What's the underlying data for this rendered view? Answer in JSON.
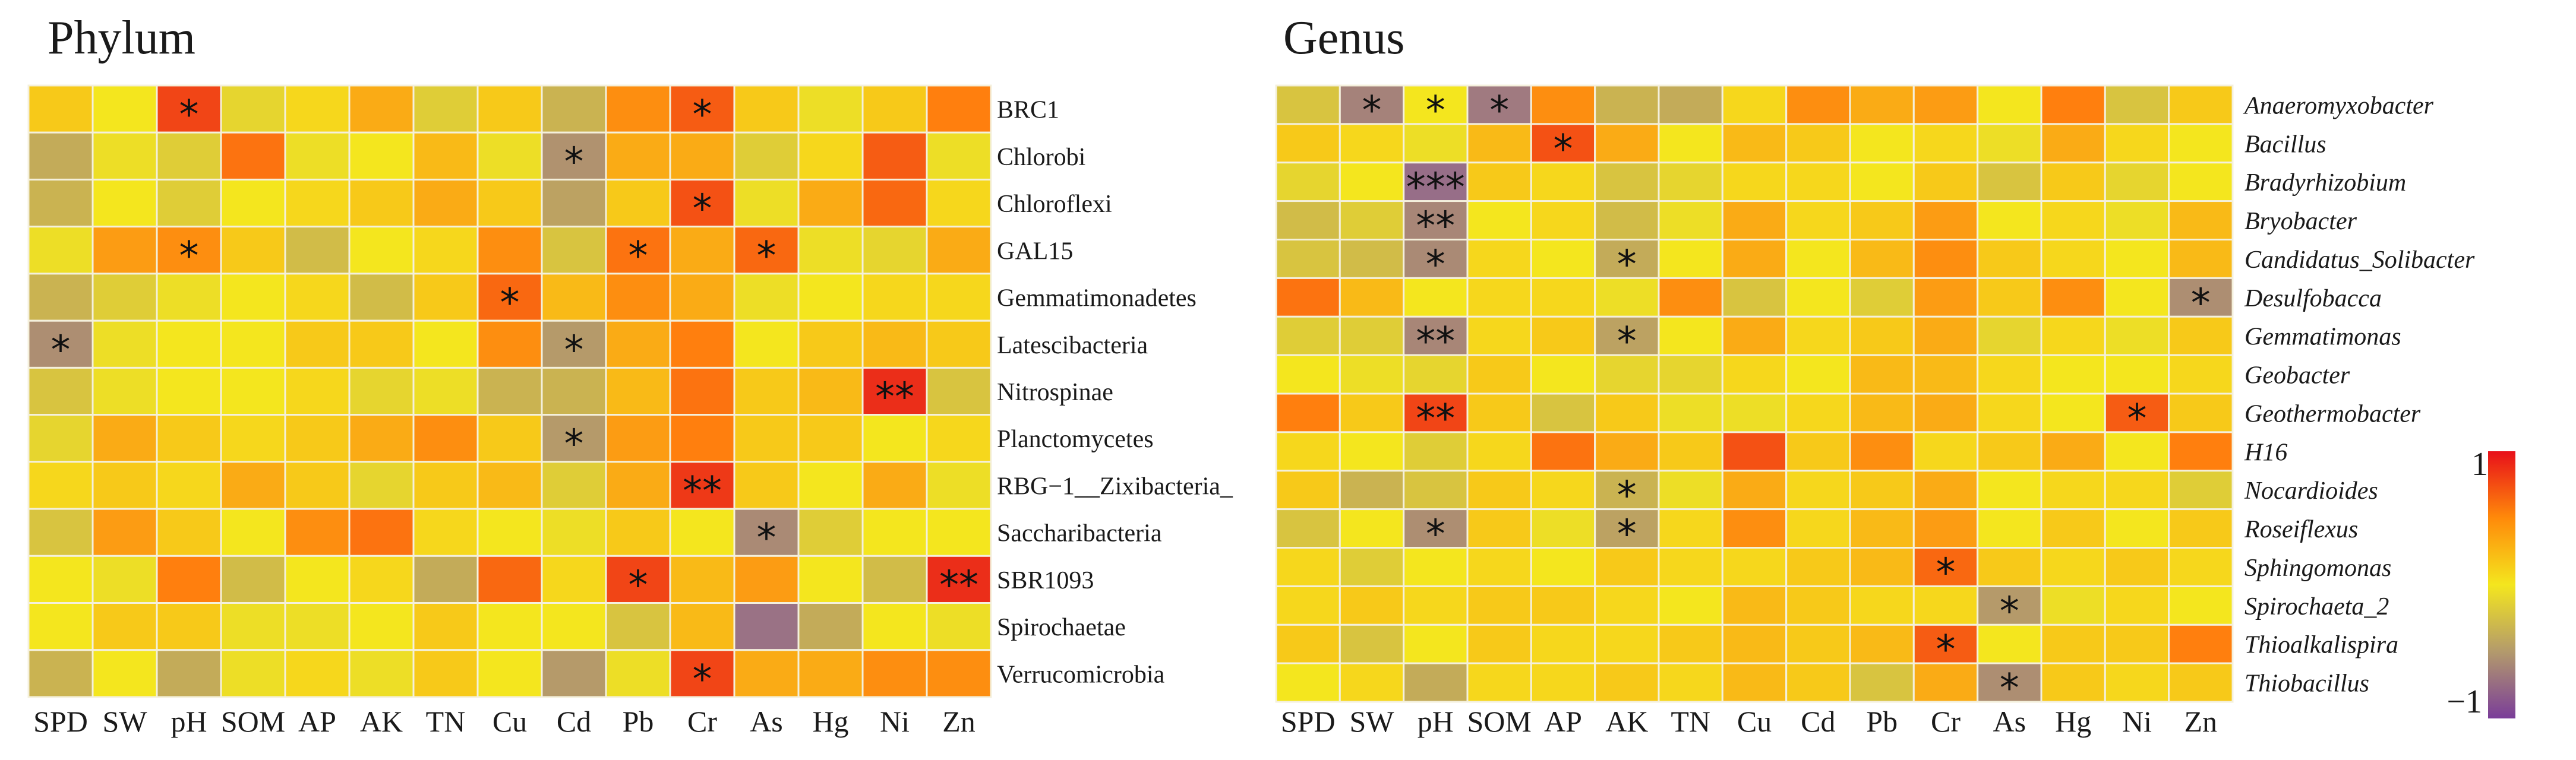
{
  "palette": {
    "neg": "#8a5a95",
    "low": "#b59a6a",
    "mid": "#f4e61e",
    "high": "#ff7f0e",
    "max": "#e8221a",
    "grid": "#f4f0dc"
  },
  "chart_data": [
    {
      "type": "heatmap",
      "title": "Phylum",
      "italic_rows": false,
      "columns": [
        "SPD",
        "SW",
        "pH",
        "SOM",
        "AP",
        "AK",
        "TN",
        "Cu",
        "Cd",
        "Pb",
        "Cr",
        "As",
        "Hg",
        "Ni",
        "Zn"
      ],
      "rows": [
        "BRC1",
        "Chlorobi",
        "Chloroflexi",
        "GAL15",
        "Gemmatimonadetes",
        "Latescibacteria",
        "Nitrospinae",
        "Planctomycetes",
        "RBG−1__Zixibacteria_",
        "Saccharibacteria",
        "SBR1093",
        "Spirochaetae",
        "Verrucomicrobia"
      ],
      "values": [
        [
          0.35,
          0.25,
          0.85,
          0.15,
          0.3,
          0.45,
          0.1,
          0.35,
          -0.05,
          0.55,
          0.75,
          0.35,
          0.2,
          0.35,
          0.6
        ],
        [
          -0.1,
          0.2,
          0.1,
          0.65,
          0.2,
          0.25,
          0.4,
          0.2,
          -0.3,
          0.45,
          0.45,
          0.1,
          0.3,
          0.75,
          0.2
        ],
        [
          -0.05,
          0.25,
          0.1,
          0.25,
          0.3,
          0.35,
          0.45,
          0.35,
          -0.15,
          0.35,
          0.8,
          0.2,
          0.45,
          0.7,
          0.3
        ],
        [
          0.2,
          0.5,
          0.55,
          0.35,
          0.0,
          0.25,
          0.3,
          0.55,
          0.05,
          0.65,
          0.45,
          0.7,
          0.2,
          0.15,
          0.45
        ],
        [
          -0.05,
          0.1,
          0.2,
          0.25,
          0.3,
          0.0,
          0.35,
          0.7,
          0.4,
          0.55,
          0.45,
          0.2,
          0.25,
          0.3,
          0.3
        ],
        [
          -0.35,
          0.2,
          0.25,
          0.25,
          0.35,
          0.35,
          0.25,
          0.55,
          -0.2,
          0.45,
          0.6,
          0.25,
          0.35,
          0.4,
          0.35
        ],
        [
          0.05,
          0.2,
          0.25,
          0.25,
          0.3,
          0.15,
          0.2,
          -0.05,
          -0.05,
          0.4,
          0.65,
          0.35,
          0.4,
          0.95,
          0.05
        ],
        [
          0.15,
          0.45,
          0.35,
          0.3,
          0.35,
          0.45,
          0.55,
          0.35,
          -0.2,
          0.5,
          0.6,
          0.35,
          0.35,
          0.25,
          0.3
        ],
        [
          0.3,
          0.35,
          0.3,
          0.45,
          0.35,
          0.15,
          0.35,
          0.4,
          0.1,
          0.45,
          0.9,
          0.35,
          0.25,
          0.45,
          0.2
        ],
        [
          0.05,
          0.5,
          0.35,
          0.25,
          0.55,
          0.65,
          0.3,
          0.25,
          0.2,
          0.35,
          0.25,
          -0.4,
          0.1,
          0.25,
          0.25
        ],
        [
          0.25,
          0.2,
          0.6,
          0.0,
          0.25,
          0.3,
          -0.1,
          0.7,
          0.3,
          0.85,
          0.4,
          0.5,
          0.25,
          0.0,
          0.95
        ],
        [
          0.25,
          0.35,
          0.35,
          0.2,
          0.2,
          0.25,
          0.35,
          0.25,
          0.25,
          0.05,
          0.4,
          -0.7,
          -0.1,
          0.25,
          0.2
        ],
        [
          -0.05,
          0.25,
          -0.1,
          0.2,
          0.3,
          0.2,
          0.35,
          0.25,
          -0.2,
          0.2,
          0.85,
          0.45,
          0.45,
          0.55,
          0.55
        ]
      ],
      "stars": [
        [
          "",
          "",
          "*",
          "",
          "",
          "",
          "",
          "",
          "",
          "",
          "*",
          "",
          "",
          "",
          ""
        ],
        [
          "",
          "",
          "",
          "",
          "",
          "",
          "",
          "",
          "*",
          "",
          "",
          "",
          "",
          "",
          ""
        ],
        [
          "",
          "",
          "",
          "",
          "",
          "",
          "",
          "",
          "",
          "",
          "*",
          "",
          "",
          "",
          ""
        ],
        [
          "",
          "",
          "*",
          "",
          "",
          "",
          "",
          "",
          "",
          "*",
          "",
          "*",
          "",
          "",
          ""
        ],
        [
          "",
          "",
          "",
          "",
          "",
          "",
          "",
          "*",
          "",
          "",
          "",
          "",
          "",
          "",
          ""
        ],
        [
          "*",
          "",
          "",
          "",
          "",
          "",
          "",
          "",
          "*",
          "",
          "",
          "",
          "",
          "",
          ""
        ],
        [
          "",
          "",
          "",
          "",
          "",
          "",
          "",
          "",
          "",
          "",
          "",
          "",
          "",
          "**",
          ""
        ],
        [
          "",
          "",
          "",
          "",
          "",
          "",
          "",
          "",
          "*",
          "",
          "",
          "",
          "",
          "",
          ""
        ],
        [
          "",
          "",
          "",
          "",
          "",
          "",
          "",
          "",
          "",
          "",
          "**",
          "",
          "",
          "",
          ""
        ],
        [
          "",
          "",
          "",
          "",
          "",
          "",
          "",
          "",
          "",
          "",
          "",
          "*",
          "",
          "",
          ""
        ],
        [
          "",
          "",
          "",
          "",
          "",
          "",
          "",
          "",
          "",
          "*",
          "",
          "",
          "",
          "",
          "**"
        ],
        [
          "",
          "",
          "",
          "",
          "",
          "",
          "",
          "",
          "",
          "",
          "",
          "",
          "",
          "",
          ""
        ],
        [
          "",
          "",
          "",
          "",
          "",
          "",
          "",
          "",
          "",
          "",
          "*",
          "",
          "",
          "",
          ""
        ]
      ]
    },
    {
      "type": "heatmap",
      "title": "Genus",
      "italic_rows": true,
      "columns": [
        "SPD",
        "SW",
        "pH",
        "SOM",
        "AP",
        "AK",
        "TN",
        "Cu",
        "Cd",
        "Pb",
        "Cr",
        "As",
        "Hg",
        "Ni",
        "Zn"
      ],
      "rows": [
        "Anaeromyxobacter",
        "Bacillus",
        "Bradyrhizobium",
        "Bryobacter",
        "Candidatus_Solibacter",
        "Desulfobacca",
        "Gemmatimonas",
        "Geobacter",
        "Geothermobacter",
        "H16",
        "Nocardioides",
        "Roseiflexus",
        "Sphingomonas",
        "Spirochaeta_2",
        "Thioalkalispira",
        "Thiobacillus"
      ],
      "values": [
        [
          0.05,
          -0.5,
          0.25,
          -0.6,
          0.55,
          -0.05,
          -0.1,
          0.3,
          0.55,
          0.45,
          0.5,
          0.25,
          0.6,
          0.05,
          0.35
        ],
        [
          0.35,
          0.3,
          0.2,
          0.4,
          0.8,
          0.45,
          0.25,
          0.4,
          0.35,
          0.25,
          0.3,
          0.2,
          0.45,
          0.3,
          0.25
        ],
        [
          0.15,
          0.25,
          -0.75,
          0.35,
          0.3,
          0.05,
          0.15,
          0.3,
          0.3,
          0.25,
          0.35,
          0.05,
          0.35,
          0.15,
          0.25
        ],
        [
          0.0,
          0.1,
          -0.45,
          0.25,
          0.3,
          0.0,
          0.2,
          0.45,
          0.3,
          0.35,
          0.5,
          0.25,
          0.3,
          0.2,
          0.4
        ],
        [
          0.05,
          0.0,
          -0.4,
          0.3,
          0.25,
          -0.1,
          0.25,
          0.45,
          0.25,
          0.4,
          0.55,
          0.35,
          0.3,
          0.25,
          0.4
        ],
        [
          0.65,
          0.4,
          0.25,
          0.3,
          0.3,
          0.2,
          0.55,
          0.05,
          0.25,
          0.1,
          0.5,
          0.35,
          0.55,
          0.25,
          -0.35
        ],
        [
          0.1,
          0.1,
          -0.45,
          0.3,
          0.35,
          -0.15,
          0.25,
          0.45,
          0.3,
          0.35,
          0.45,
          0.15,
          0.3,
          0.2,
          0.35
        ],
        [
          0.25,
          0.2,
          0.15,
          0.35,
          0.25,
          0.15,
          0.15,
          0.3,
          0.25,
          0.4,
          0.4,
          0.3,
          0.25,
          0.25,
          0.3
        ],
        [
          0.6,
          0.35,
          0.85,
          0.35,
          0.05,
          0.35,
          0.2,
          0.2,
          0.3,
          0.4,
          0.45,
          0.3,
          0.25,
          0.75,
          0.35
        ],
        [
          0.3,
          0.25,
          0.1,
          0.3,
          0.65,
          0.45,
          0.35,
          0.8,
          0.35,
          0.55,
          0.3,
          0.35,
          0.45,
          0.25,
          0.6
        ],
        [
          0.35,
          -0.05,
          0.05,
          0.35,
          0.3,
          -0.05,
          0.2,
          0.45,
          0.3,
          0.35,
          0.45,
          0.25,
          0.3,
          0.3,
          0.1
        ],
        [
          0.05,
          0.25,
          -0.35,
          0.35,
          0.2,
          -0.15,
          0.3,
          0.55,
          0.3,
          0.4,
          0.5,
          0.25,
          0.35,
          0.25,
          0.35
        ],
        [
          0.3,
          0.1,
          0.25,
          0.3,
          0.25,
          0.35,
          0.3,
          0.3,
          0.35,
          0.4,
          0.7,
          0.35,
          0.3,
          0.35,
          0.3
        ],
        [
          0.3,
          0.35,
          0.3,
          0.35,
          0.35,
          0.3,
          0.25,
          0.4,
          0.35,
          0.3,
          0.3,
          -0.2,
          0.2,
          0.3,
          0.25
        ],
        [
          0.35,
          0.05,
          0.25,
          0.35,
          0.3,
          0.3,
          0.35,
          0.4,
          0.35,
          0.4,
          0.75,
          0.25,
          0.35,
          0.35,
          0.6
        ],
        [
          0.25,
          0.3,
          -0.1,
          0.3,
          0.3,
          0.35,
          0.3,
          0.4,
          0.35,
          0.05,
          0.45,
          -0.35,
          0.35,
          0.3,
          0.35
        ]
      ],
      "stars": [
        [
          "",
          "*",
          "*",
          "*",
          "",
          "",
          "",
          "",
          "",
          "",
          "",
          "",
          "",
          "",
          ""
        ],
        [
          "",
          "",
          "",
          "",
          "*",
          "",
          "",
          "",
          "",
          "",
          "",
          "",
          "",
          "",
          ""
        ],
        [
          "",
          "",
          "***",
          "",
          "",
          "",
          "",
          "",
          "",
          "",
          "",
          "",
          "",
          "",
          ""
        ],
        [
          "",
          "",
          "**",
          "",
          "",
          "",
          "",
          "",
          "",
          "",
          "",
          "",
          "",
          "",
          ""
        ],
        [
          "",
          "",
          "*",
          "",
          "",
          "*",
          "",
          "",
          "",
          "",
          "",
          "",
          "",
          "",
          ""
        ],
        [
          "",
          "",
          "",
          "",
          "",
          "",
          "",
          "",
          "",
          "",
          "",
          "",
          "",
          "",
          "*"
        ],
        [
          "",
          "",
          "**",
          "",
          "",
          "*",
          "",
          "",
          "",
          "",
          "",
          "",
          "",
          "",
          ""
        ],
        [
          "",
          "",
          "",
          "",
          "",
          "",
          "",
          "",
          "",
          "",
          "",
          "",
          "",
          "",
          ""
        ],
        [
          "",
          "",
          "**",
          "",
          "",
          "",
          "",
          "",
          "",
          "",
          "",
          "",
          "",
          "*",
          ""
        ],
        [
          "",
          "",
          "",
          "",
          "",
          "",
          "",
          "",
          "",
          "",
          "",
          "",
          "",
          "",
          ""
        ],
        [
          "",
          "",
          "",
          "",
          "",
          "*",
          "",
          "",
          "",
          "",
          "",
          "",
          "",
          "",
          ""
        ],
        [
          "",
          "",
          "*",
          "",
          "",
          "*",
          "",
          "",
          "",
          "",
          "",
          "",
          "",
          "",
          ""
        ],
        [
          "",
          "",
          "",
          "",
          "",
          "",
          "",
          "",
          "",
          "",
          "*",
          "",
          "",
          "",
          ""
        ],
        [
          "",
          "",
          "",
          "",
          "",
          "",
          "",
          "",
          "",
          "",
          "",
          "*",
          "",
          "",
          ""
        ],
        [
          "",
          "",
          "",
          "",
          "",
          "",
          "",
          "",
          "",
          "",
          "*",
          "",
          "",
          "",
          ""
        ],
        [
          "",
          "",
          "",
          "",
          "",
          "",
          "",
          "",
          "",
          "",
          "",
          "*",
          "",
          "",
          ""
        ]
      ]
    }
  ],
  "colorbar": {
    "max_label": "1",
    "min_label": "−1",
    "range": [
      -1,
      1
    ]
  }
}
